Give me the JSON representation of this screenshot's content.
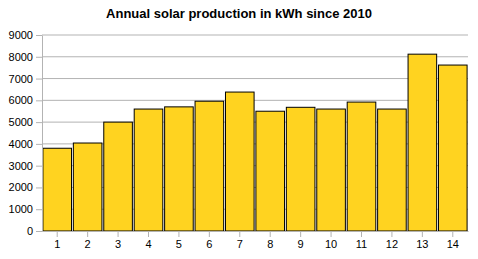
{
  "chart_data": {
    "type": "bar",
    "title": "Annual solar production in kWh since 2010",
    "categories": [
      "1",
      "2",
      "3",
      "4",
      "5",
      "6",
      "7",
      "8",
      "9",
      "10",
      "11",
      "12",
      "13",
      "14"
    ],
    "values": [
      3800,
      4040,
      5000,
      5600,
      5700,
      5960,
      6380,
      5500,
      5680,
      5600,
      5920,
      5600,
      8120,
      7620
    ],
    "color": "#ffd320",
    "ylim": [
      0,
      9000
    ],
    "yticks": [
      0,
      1000,
      2000,
      3000,
      4000,
      5000,
      6000,
      7000,
      8000,
      9000
    ],
    "grid": true
  }
}
